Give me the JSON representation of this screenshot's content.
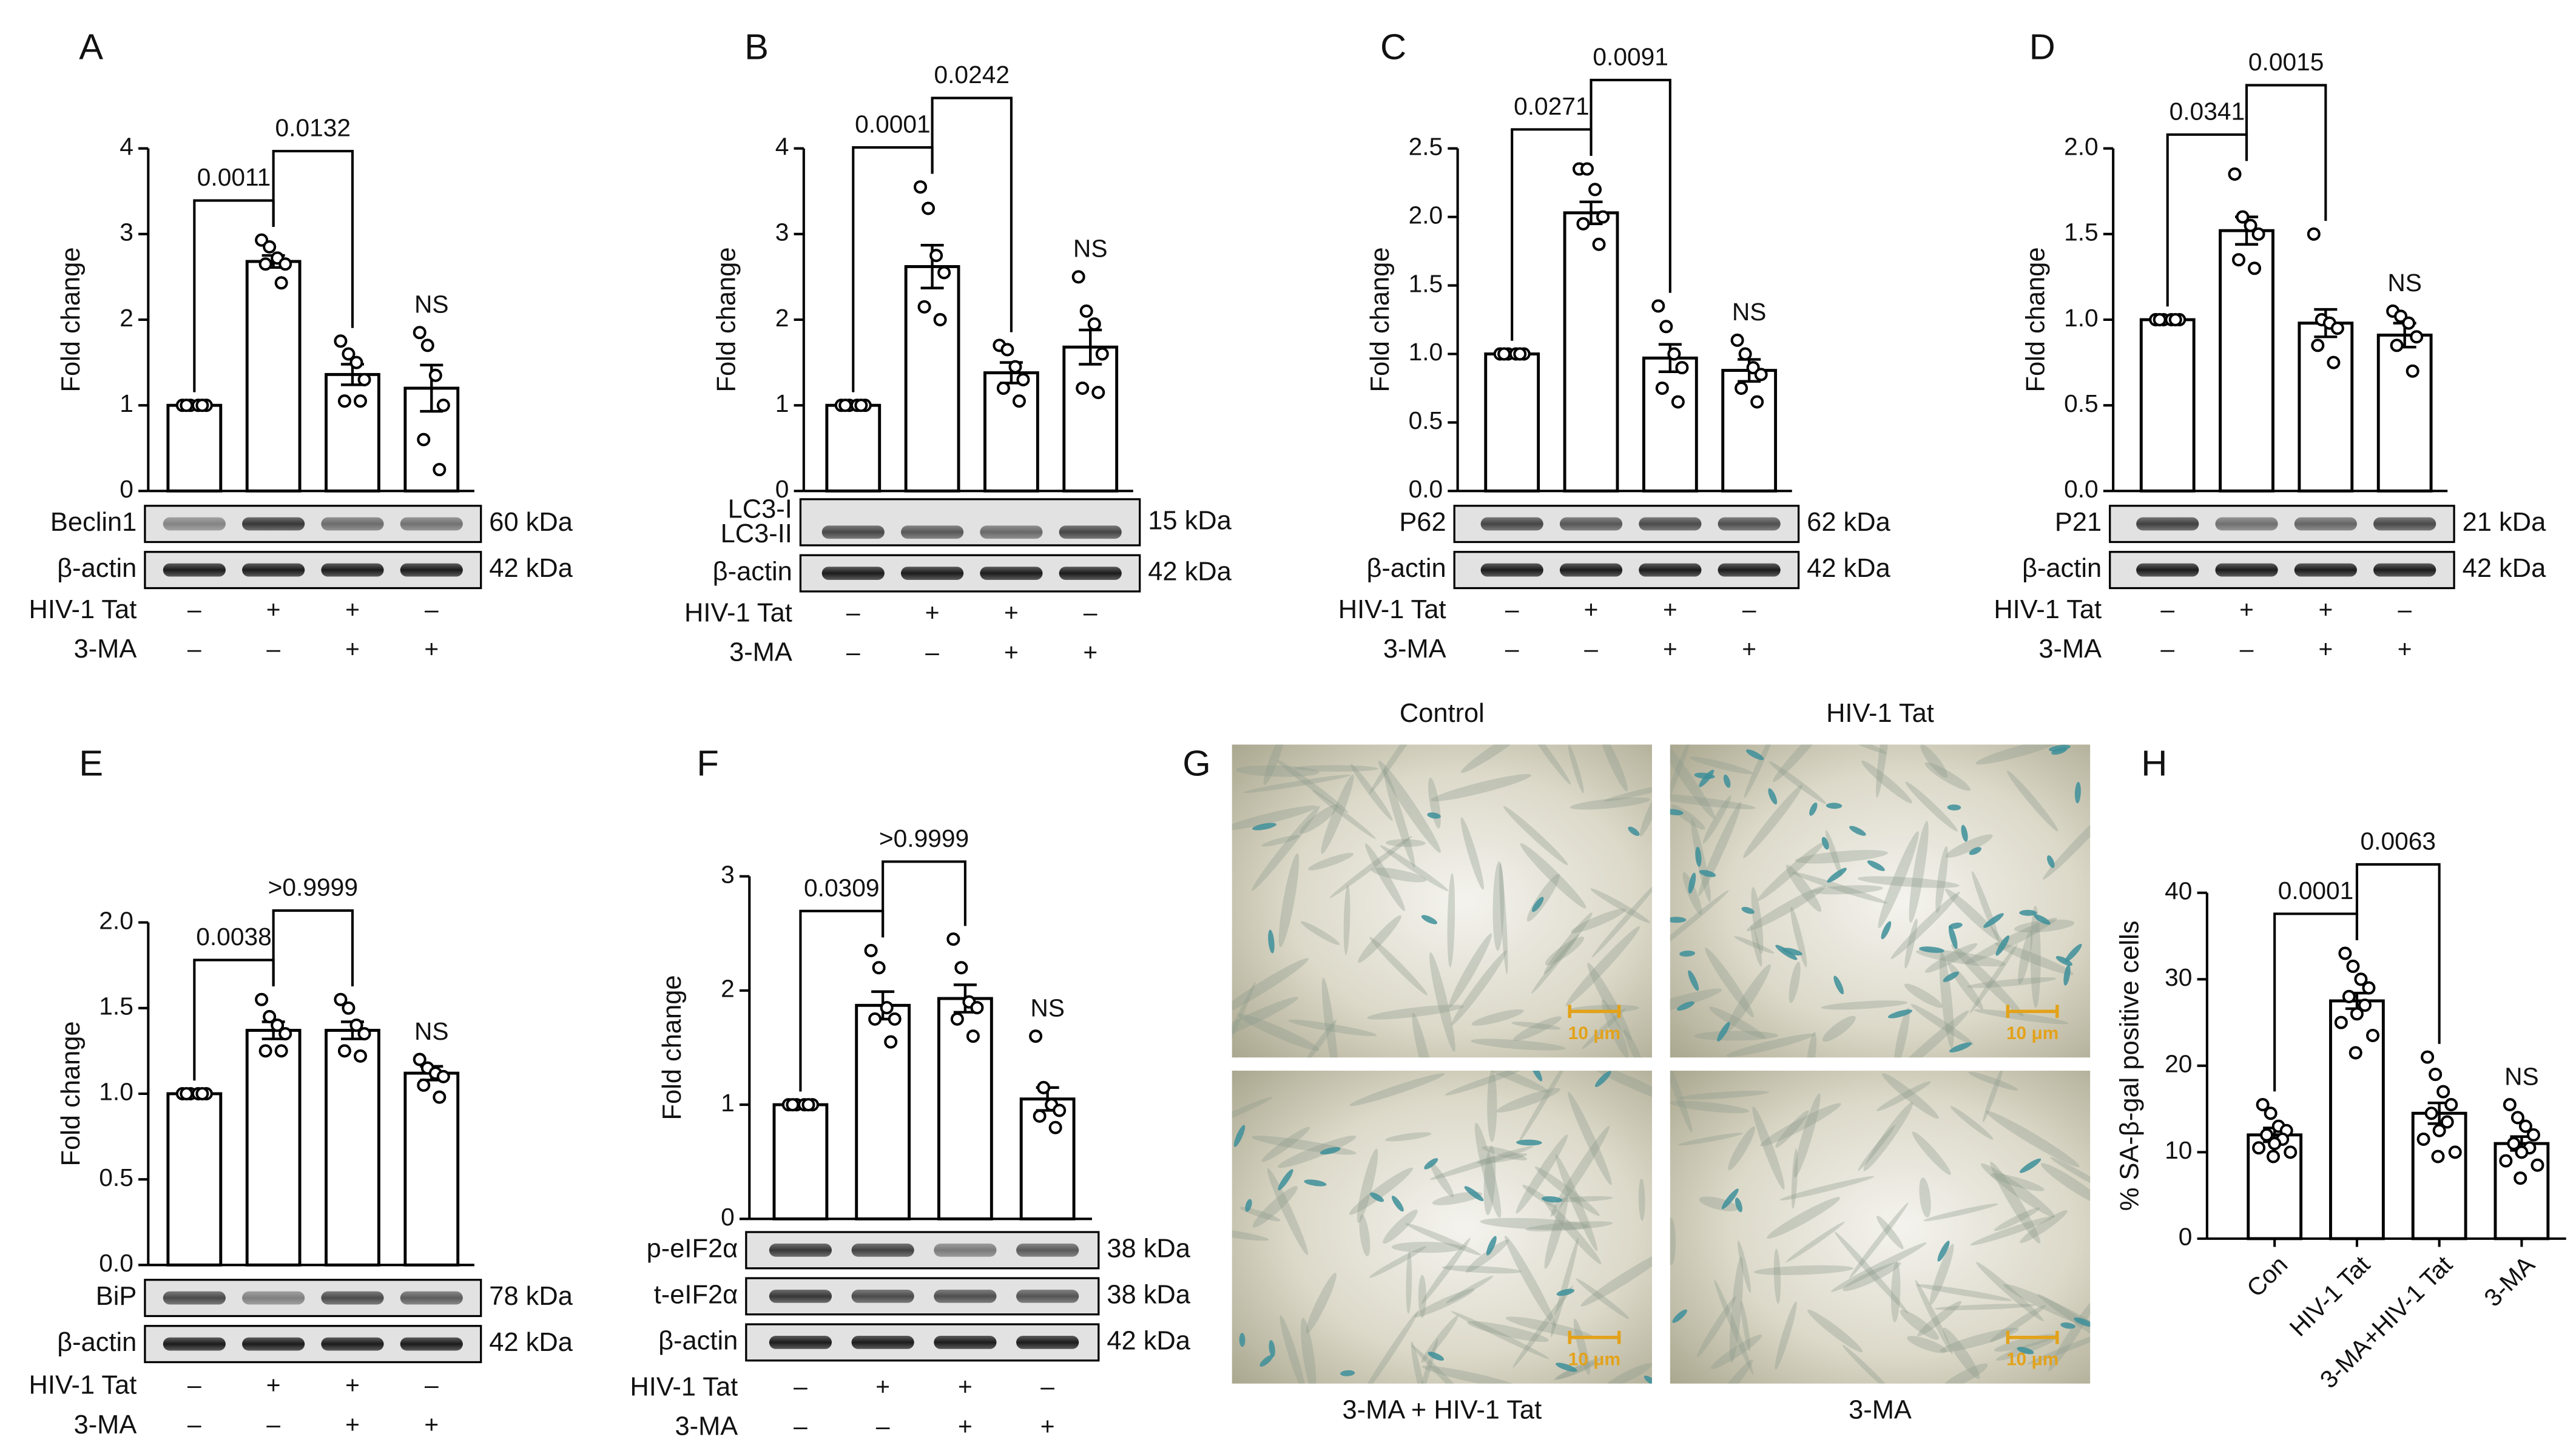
{
  "chart_data": [
    {
      "type": "bar",
      "panel": "A",
      "ylabel": "Fold change",
      "ylim": [
        0,
        4
      ],
      "yticks": [
        0,
        1,
        2,
        3,
        4
      ],
      "values": [
        1.0,
        2.68,
        1.36,
        1.2
      ],
      "errors": [
        0,
        0.07,
        0.12,
        0.27
      ],
      "points": [
        [
          1,
          1,
          1,
          1,
          1,
          1
        ],
        [
          2.93,
          2.85,
          2.72,
          2.65,
          2.65,
          2.43
        ],
        [
          1.75,
          1.6,
          1.5,
          1.3,
          1.05,
          1.05
        ],
        [
          1.85,
          1.7,
          1.35,
          1.0,
          0.6,
          0.25
        ]
      ],
      "annotations": [
        "0.0011",
        "0.0132"
      ],
      "ns_label": "NS",
      "blots": [
        {
          "labels": [
            "Beclin1"
          ],
          "kda": "60 kDa"
        },
        {
          "labels": [
            "β-actin"
          ],
          "kda": "42 kDa"
        }
      ],
      "treatments": [
        {
          "name": "HIV-1 Tat",
          "signs": [
            "–",
            "+",
            "+",
            "–"
          ]
        },
        {
          "name": "3-MA",
          "signs": [
            "–",
            "–",
            "+",
            "+"
          ]
        }
      ]
    },
    {
      "type": "bar",
      "panel": "B",
      "ylabel": "Fold change",
      "ylim": [
        0,
        4
      ],
      "yticks": [
        0,
        1,
        2,
        3,
        4
      ],
      "values": [
        1.0,
        2.62,
        1.38,
        1.68
      ],
      "errors": [
        0,
        0.25,
        0.12,
        0.2
      ],
      "points": [
        [
          1,
          1,
          1,
          1,
          1,
          1
        ],
        [
          3.55,
          3.3,
          2.75,
          2.55,
          2.15,
          2.0
        ],
        [
          1.7,
          1.65,
          1.45,
          1.3,
          1.2,
          1.05
        ],
        [
          2.5,
          2.1,
          1.95,
          1.6,
          1.2,
          1.15
        ]
      ],
      "annotations": [
        "0.0001",
        "0.0242"
      ],
      "ns_label": "NS",
      "blots": [
        {
          "labels": [
            "LC3-I",
            "LC3-II"
          ],
          "kda": "15 kDa"
        },
        {
          "labels": [
            "β-actin"
          ],
          "kda": "42 kDa"
        }
      ],
      "treatments": [
        {
          "name": "HIV-1 Tat",
          "signs": [
            "–",
            "+",
            "+",
            "–"
          ]
        },
        {
          "name": "3-MA",
          "signs": [
            "–",
            "–",
            "+",
            "+"
          ]
        }
      ]
    },
    {
      "type": "bar",
      "panel": "C",
      "ylabel": "Fold change",
      "ylim": [
        0,
        2.5
      ],
      "yticks": [
        {
          "value": 0,
          "label": "0.0"
        },
        {
          "value": 0.5,
          "label": "0.5"
        },
        {
          "value": 1,
          "label": "1.0"
        },
        {
          "value": 1.5,
          "label": "1.5"
        },
        {
          "value": 2,
          "label": "2.0"
        },
        {
          "value": 2.5,
          "label": "2.5"
        }
      ],
      "values": [
        1.0,
        2.03,
        0.97,
        0.88
      ],
      "errors": [
        0,
        0.08,
        0.1,
        0.08
      ],
      "points": [
        [
          1,
          1,
          1,
          1,
          1,
          1
        ],
        [
          2.35,
          2.35,
          2.2,
          2.0,
          1.95,
          1.8
        ],
        [
          1.35,
          1.2,
          1.0,
          0.9,
          0.75,
          0.65
        ],
        [
          1.1,
          1.0,
          0.9,
          0.85,
          0.75,
          0.65
        ]
      ],
      "annotations": [
        "0.0271",
        "0.0091"
      ],
      "ns_label": "NS",
      "blots": [
        {
          "labels": [
            "P62"
          ],
          "kda": "62 kDa"
        },
        {
          "labels": [
            "β-actin"
          ],
          "kda": "42 kDa"
        }
      ],
      "treatments": [
        {
          "name": "HIV-1 Tat",
          "signs": [
            "–",
            "+",
            "+",
            "–"
          ]
        },
        {
          "name": "3-MA",
          "signs": [
            "–",
            "–",
            "+",
            "+"
          ]
        }
      ]
    },
    {
      "type": "bar",
      "panel": "D",
      "ylabel": "Fold change",
      "ylim": [
        0,
        2
      ],
      "yticks": [
        {
          "value": 0,
          "label": "0.0"
        },
        {
          "value": 0.5,
          "label": "0.5"
        },
        {
          "value": 1,
          "label": "1.0"
        },
        {
          "value": 1.5,
          "label": "1.5"
        },
        {
          "value": 2,
          "label": "2.0"
        }
      ],
      "values": [
        1.0,
        1.52,
        0.98,
        0.91
      ],
      "errors": [
        0,
        0.08,
        0.08,
        0.07
      ],
      "points": [
        [
          1,
          1,
          1,
          1,
          1,
          1
        ],
        [
          1.85,
          1.6,
          1.55,
          1.5,
          1.35,
          1.3
        ],
        [
          1.5,
          1.0,
          0.98,
          0.95,
          0.85,
          0.75
        ],
        [
          1.05,
          1.02,
          0.98,
          0.9,
          0.85,
          0.7
        ]
      ],
      "annotations": [
        "0.0341",
        "0.0015"
      ],
      "ns_label": "NS",
      "blots": [
        {
          "labels": [
            "P21"
          ],
          "kda": "21 kDa"
        },
        {
          "labels": [
            "β-actin"
          ],
          "kda": "42 kDa"
        }
      ],
      "treatments": [
        {
          "name": "HIV-1 Tat",
          "signs": [
            "–",
            "+",
            "+",
            "–"
          ]
        },
        {
          "name": "3-MA",
          "signs": [
            "–",
            "–",
            "+",
            "+"
          ]
        }
      ]
    },
    {
      "type": "bar",
      "panel": "E",
      "ylabel": "Fold change",
      "ylim": [
        0,
        2
      ],
      "yticks": [
        {
          "value": 0,
          "label": "0.0"
        },
        {
          "value": 0.5,
          "label": "0.5"
        },
        {
          "value": 1,
          "label": "1.0"
        },
        {
          "value": 1.5,
          "label": "1.5"
        },
        {
          "value": 2,
          "label": "2.0"
        }
      ],
      "values": [
        1.0,
        1.37,
        1.37,
        1.12
      ],
      "errors": [
        0,
        0.05,
        0.05,
        0.04
      ],
      "points": [
        [
          1,
          1,
          1,
          1,
          1,
          1
        ],
        [
          1.55,
          1.45,
          1.4,
          1.35,
          1.25,
          1.25
        ],
        [
          1.55,
          1.5,
          1.4,
          1.35,
          1.25,
          1.22
        ],
        [
          1.2,
          1.15,
          1.12,
          1.1,
          1.05,
          0.98
        ]
      ],
      "annotations": [
        "0.0038",
        ">0.9999"
      ],
      "ns_label": "NS",
      "blots": [
        {
          "labels": [
            "BiP"
          ],
          "kda": "78 kDa"
        },
        {
          "labels": [
            "β-actin"
          ],
          "kda": "42 kDa"
        }
      ],
      "treatments": [
        {
          "name": "HIV-1 Tat",
          "signs": [
            "–",
            "+",
            "+",
            "–"
          ]
        },
        {
          "name": "3-MA",
          "signs": [
            "–",
            "–",
            "+",
            "+"
          ]
        }
      ]
    },
    {
      "type": "bar",
      "panel": "F",
      "ylabel": "Fold change",
      "ylim": [
        0,
        3
      ],
      "yticks": [
        0,
        1,
        2,
        3
      ],
      "values": [
        1.0,
        1.87,
        1.93,
        1.05
      ],
      "errors": [
        0,
        0.12,
        0.12,
        0.1
      ],
      "points": [
        [
          1,
          1,
          1,
          1,
          1,
          1
        ],
        [
          2.35,
          2.2,
          1.85,
          1.75,
          1.75,
          1.55
        ],
        [
          2.45,
          2.2,
          1.9,
          1.85,
          1.75,
          1.6
        ],
        [
          1.6,
          1.15,
          1.0,
          0.95,
          0.9,
          0.8
        ]
      ],
      "annotations": [
        "0.0309",
        ">0.9999"
      ],
      "ns_label": "NS",
      "blots": [
        {
          "labels": [
            "p-eIF2α"
          ],
          "kda": "38 kDa"
        },
        {
          "labels": [
            "t-eIF2α"
          ],
          "kda": "38 kDa"
        },
        {
          "labels": [
            "β-actin"
          ],
          "kda": "42 kDa"
        }
      ],
      "treatments": [
        {
          "name": "HIV-1 Tat",
          "signs": [
            "–",
            "+",
            "+",
            "–"
          ]
        },
        {
          "name": "3-MA",
          "signs": [
            "–",
            "–",
            "+",
            "+"
          ]
        }
      ]
    },
    {
      "type": "bar",
      "panel": "H",
      "ylabel": "% SA-β-gal positive cells",
      "ylim": [
        0,
        40
      ],
      "yticks": [
        0,
        10,
        20,
        30,
        40
      ],
      "categories": [
        "Con",
        "HIV-1 Tat",
        "3-MA+HIV-1 Tat",
        "3-MA"
      ],
      "values": [
        12,
        27.5,
        14.5,
        11
      ],
      "errors": [
        0.8,
        0.9,
        1.2,
        0.8
      ],
      "points": [
        [
          15.5,
          14.5,
          13,
          12.5,
          12,
          11.5,
          11,
          10.5,
          10,
          9.5
        ],
        [
          33,
          31.5,
          30,
          29,
          28,
          27,
          26,
          25,
          23.5,
          21.5
        ],
        [
          21,
          19,
          17,
          15.5,
          14.5,
          13.5,
          12.5,
          11.5,
          10,
          9.5
        ],
        [
          15.5,
          14,
          13,
          12,
          11,
          10.5,
          10,
          9,
          8.5,
          7
        ]
      ],
      "annotations": [
        "0.0001",
        "0.0063"
      ],
      "ns_label": "NS"
    }
  ],
  "micrographs": {
    "panel": "G",
    "scale_bar": "10 μm",
    "images": [
      {
        "label": "Control"
      },
      {
        "label": "HIV-1 Tat"
      },
      {
        "label": "3-MA + HIV-1 Tat"
      },
      {
        "label": "3-MA"
      }
    ]
  }
}
